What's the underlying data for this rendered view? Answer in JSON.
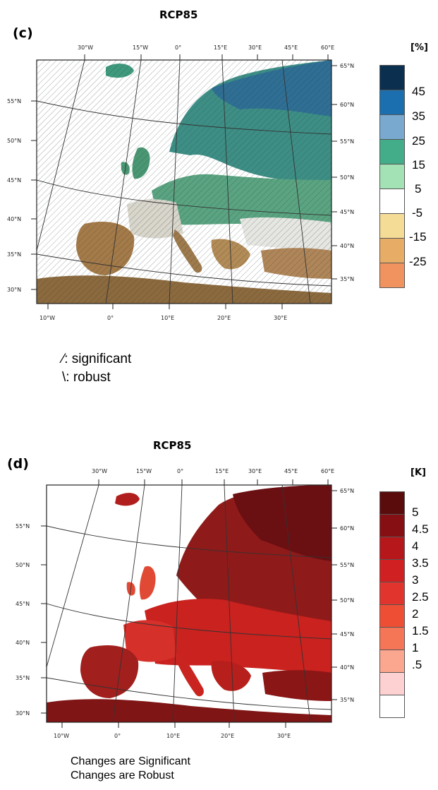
{
  "panels": [
    {
      "id": "c",
      "label": "(c)",
      "title": "RCP85",
      "unit": "[%]",
      "top_lon_labels": [
        "30°W",
        "15°W",
        "0°",
        "15°E",
        "30°E",
        "45°E",
        "60°E"
      ],
      "bottom_lon_labels": [
        "10°W",
        "0°",
        "10°E",
        "20°E",
        "30°E"
      ],
      "left_lat_labels": [
        "55°N",
        "50°N",
        "45°N",
        "40°N",
        "35°N",
        "30°N"
      ],
      "right_lat_labels": [
        "65°N",
        "60°N",
        "55°N",
        "50°N",
        "45°N",
        "40°N",
        "35°N"
      ],
      "colorbar": {
        "colors": [
          "#0b2f4e",
          "#1c6fae",
          "#79a9cf",
          "#43ad8a",
          "#a3e2b4",
          "#ffffff",
          "#f4dc97",
          "#e7ad66",
          "#f0935e"
        ],
        "labels": [
          "45",
          "35",
          "25",
          "15",
          "5",
          "-5",
          "-15",
          "-25"
        ]
      },
      "notes": {
        "significant_symbol": "⁄",
        "significant": ": significant",
        "robust_symbol": "\\",
        "robust": ": robust"
      }
    },
    {
      "id": "d",
      "label": "(d)",
      "title": "RCP85",
      "unit": "[K]",
      "top_lon_labels": [
        "30°W",
        "15°W",
        "0°",
        "15°E",
        "30°E",
        "45°E",
        "60°E"
      ],
      "bottom_lon_labels": [
        "10°W",
        "0°",
        "10°E",
        "20°E",
        "30°E"
      ],
      "left_lat_labels": [
        "55°N",
        "50°N",
        "45°N",
        "40°N",
        "35°N",
        "30°N"
      ],
      "right_lat_labels": [
        "65°N",
        "60°N",
        "55°N",
        "50°N",
        "45°N",
        "40°N",
        "35°N"
      ],
      "colorbar": {
        "colors": [
          "#5a0c0c",
          "#850f13",
          "#b5171b",
          "#d02022",
          "#e0342d",
          "#ee4f34",
          "#f57557",
          "#fba68f",
          "#fdd1d1",
          "#ffffff"
        ],
        "labels": [
          "5",
          "4.5",
          "4",
          "3.5",
          "3",
          "2.5",
          "2",
          "1.5",
          "1",
          ".5"
        ]
      },
      "notes": {
        "line1": "Changes are Significant",
        "line2": "Changes are Robust"
      }
    }
  ]
}
